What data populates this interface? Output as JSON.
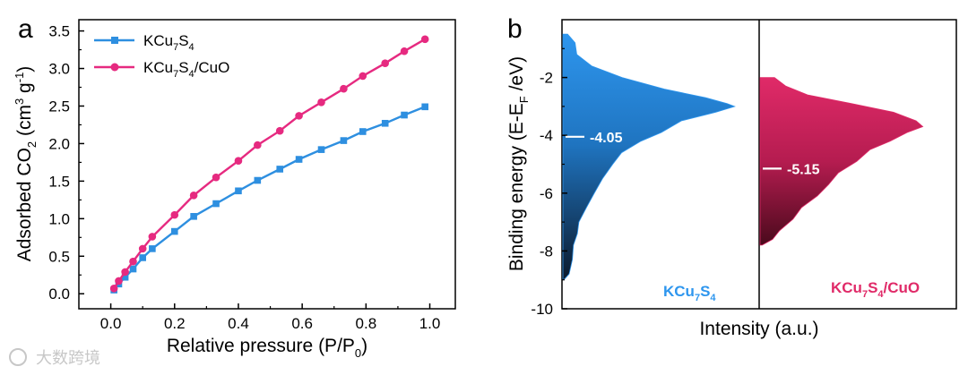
{
  "chart_data": [
    {
      "type": "line",
      "panel": "a",
      "xlabel": "Relative pressure (P/P",
      "xlabel_sub": "0",
      "xlabel_end": ")",
      "ylabel": "Adsorbed CO",
      "ylabel_sub": "2",
      "ylabel_unit": " (cm",
      "ylabel_sup": "3",
      "ylabel_unit2": " g",
      "ylabel_sup2": "-1",
      "ylabel_end": ")",
      "xlim": [
        -0.1,
        1.08
      ],
      "ylim": [
        -0.2,
        3.65
      ],
      "xticks": [
        "0.0",
        "0.2",
        "0.4",
        "0.6",
        "0.8",
        "1.0"
      ],
      "yticks": [
        "0.0",
        "0.5",
        "1.0",
        "1.5",
        "2.0",
        "2.5",
        "3.0",
        "3.5"
      ],
      "series": [
        {
          "name_parts": [
            "KCu",
            "7",
            "S",
            "4",
            ""
          ],
          "color": "#2e8fe0",
          "marker": "square",
          "x": [
            0.01,
            0.025,
            0.045,
            0.07,
            0.1,
            0.13,
            0.2,
            0.26,
            0.33,
            0.4,
            0.46,
            0.53,
            0.59,
            0.66,
            0.73,
            0.79,
            0.86,
            0.92,
            0.985
          ],
          "y": [
            0.05,
            0.13,
            0.22,
            0.33,
            0.48,
            0.6,
            0.83,
            1.03,
            1.2,
            1.37,
            1.51,
            1.66,
            1.79,
            1.92,
            2.04,
            2.16,
            2.27,
            2.38,
            2.49
          ]
        },
        {
          "name_parts": [
            "KCu",
            "7",
            "S",
            "4",
            "/CuO"
          ],
          "color": "#e62a80",
          "marker": "circle",
          "x": [
            0.01,
            0.025,
            0.045,
            0.07,
            0.1,
            0.13,
            0.2,
            0.26,
            0.33,
            0.4,
            0.46,
            0.53,
            0.59,
            0.66,
            0.73,
            0.79,
            0.86,
            0.92,
            0.985
          ],
          "y": [
            0.07,
            0.17,
            0.29,
            0.43,
            0.6,
            0.76,
            1.05,
            1.31,
            1.55,
            1.77,
            1.98,
            2.17,
            2.37,
            2.55,
            2.73,
            2.9,
            3.07,
            3.23,
            3.39
          ]
        }
      ]
    },
    {
      "type": "area",
      "panel": "b",
      "ylabel": "Binding energy (E-E",
      "ylabel_sub": "F",
      "ylabel_end": " /eV)",
      "xlabel": "Intensity (a.u.)",
      "ylim": [
        -10,
        0
      ],
      "yticks": [
        "-2",
        "-4",
        "-6",
        "-8",
        "-10"
      ],
      "series": [
        {
          "name_parts": [
            "KCu",
            "7",
            "S",
            "4",
            ""
          ],
          "color_top": "#2e96ee",
          "color_bottom": "#0c1a2c",
          "color_label": "#2e96ee",
          "center_label": "-4.05",
          "center_value": -4.05,
          "profile": [
            [
              -0.5,
              0.02
            ],
            [
              -0.8,
              0.05
            ],
            [
              -1.2,
              0.08
            ],
            [
              -1.6,
              0.16
            ],
            [
              -2.0,
              0.3
            ],
            [
              -2.4,
              0.55
            ],
            [
              -2.7,
              0.75
            ],
            [
              -2.9,
              0.88
            ],
            [
              -3.0,
              0.9
            ],
            [
              -3.2,
              0.8
            ],
            [
              -3.5,
              0.62
            ],
            [
              -3.9,
              0.52
            ],
            [
              -4.2,
              0.4
            ],
            [
              -4.6,
              0.32
            ],
            [
              -5.0,
              0.27
            ],
            [
              -5.5,
              0.22
            ],
            [
              -6.0,
              0.18
            ],
            [
              -6.5,
              0.14
            ],
            [
              -7.0,
              0.1
            ],
            [
              -7.4,
              0.07
            ],
            [
              -7.8,
              0.05
            ],
            [
              -8.3,
              0.04
            ],
            [
              -8.8,
              0.02
            ],
            [
              -9.0,
              0.005
            ]
          ]
        },
        {
          "name_parts": [
            "KCu",
            "7",
            "S",
            "4",
            "/CuO"
          ],
          "color_top": "#e02a68",
          "color_bottom": "#4a0a1c",
          "color_label": "#e02a68",
          "center_label": "-5.15",
          "center_value": -5.15,
          "profile": [
            [
              -2.0,
              0.06
            ],
            [
              -2.3,
              0.13
            ],
            [
              -2.6,
              0.26
            ],
            [
              -2.9,
              0.48
            ],
            [
              -3.2,
              0.68
            ],
            [
              -3.5,
              0.8
            ],
            [
              -3.7,
              0.83
            ],
            [
              -3.9,
              0.76
            ],
            [
              -4.2,
              0.66
            ],
            [
              -4.5,
              0.57
            ],
            [
              -4.9,
              0.49
            ],
            [
              -5.3,
              0.42
            ],
            [
              -5.7,
              0.35
            ],
            [
              -6.1,
              0.29
            ],
            [
              -6.5,
              0.23
            ],
            [
              -6.9,
              0.16
            ],
            [
              -7.3,
              0.1
            ],
            [
              -7.6,
              0.05
            ],
            [
              -7.8,
              0.005
            ]
          ]
        }
      ]
    }
  ],
  "watermark": "大数跨境"
}
